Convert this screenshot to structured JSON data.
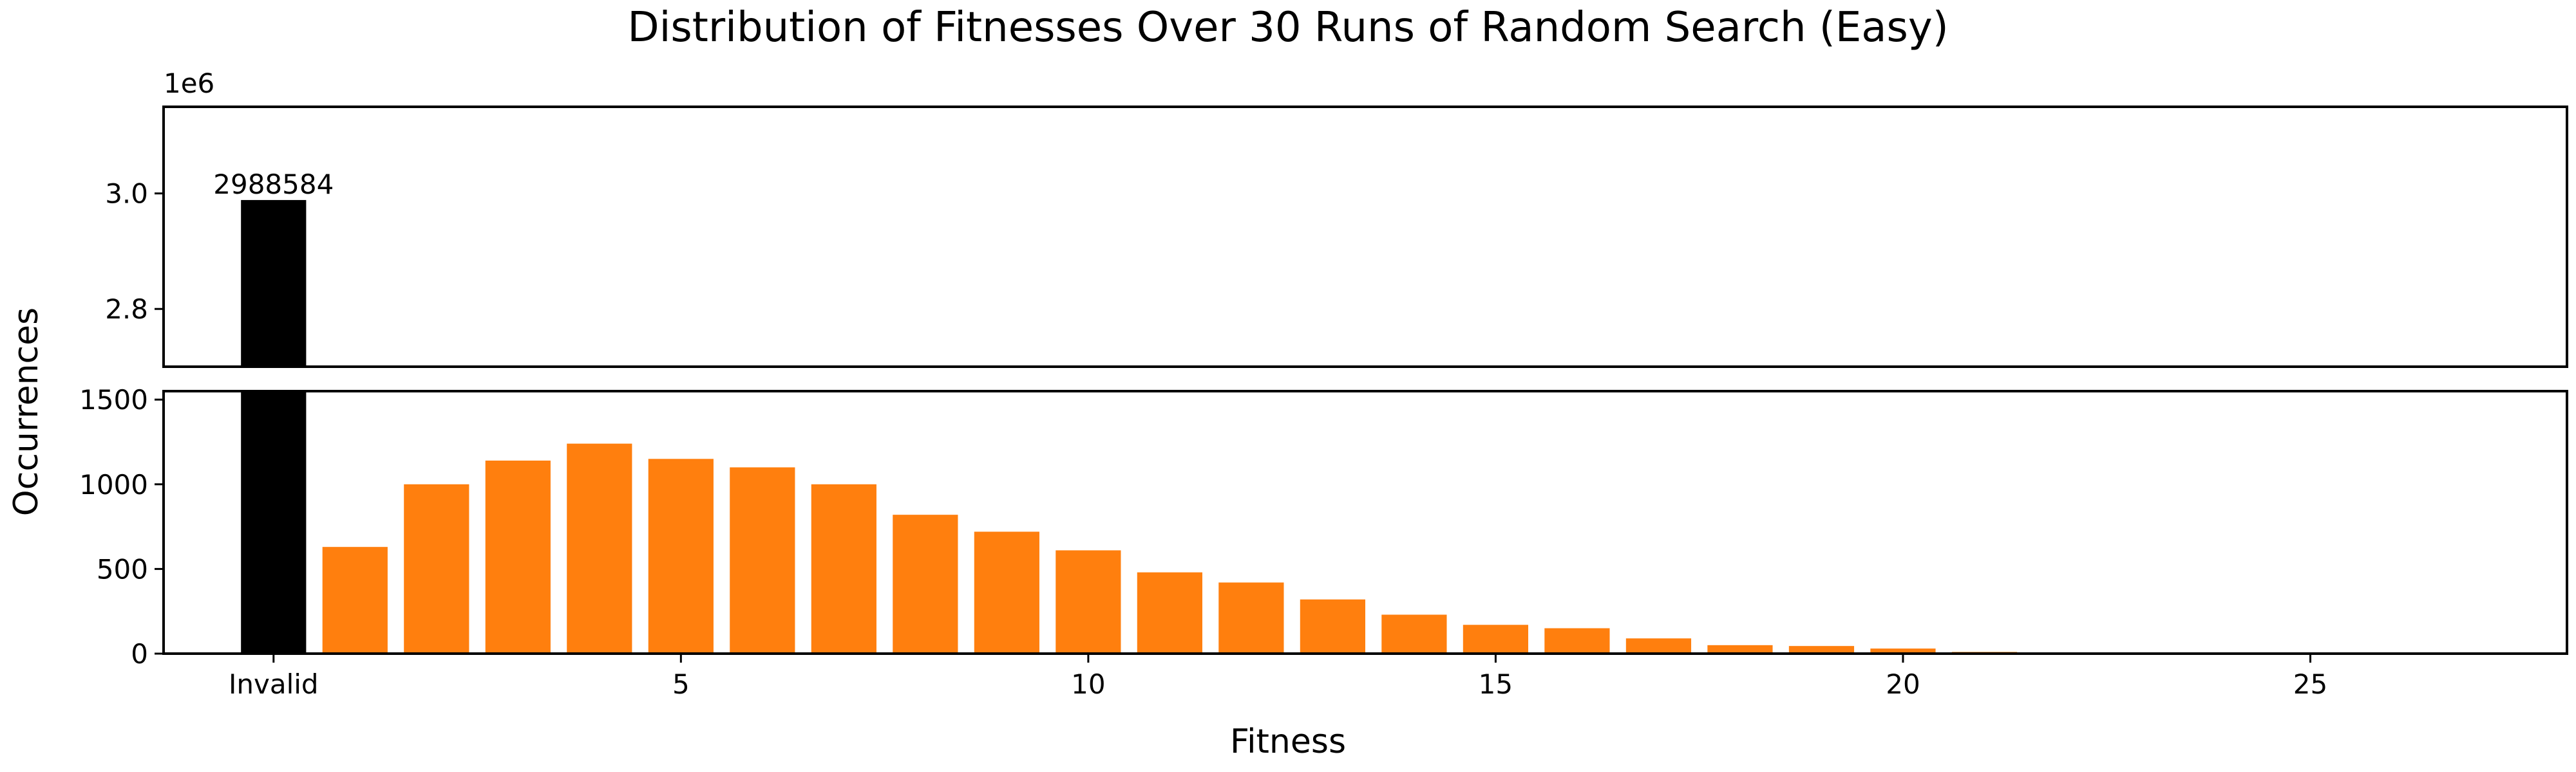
{
  "chart_data": {
    "type": "bar",
    "title": "Distribution of Fitnesses Over 30 Runs of Random Search (Easy)",
    "xlabel": "Fitness",
    "ylabel": "Occurrences",
    "x_tick_labels": [
      "Invalid",
      "5",
      "10",
      "15",
      "20",
      "25"
    ],
    "x_tick_values": [
      0,
      5,
      10,
      15,
      20,
      25
    ],
    "invalid": {
      "label": "Invalid",
      "x": 0,
      "value": 2988584,
      "value_label": "2988584",
      "color": "#000000"
    },
    "valid_color": "#ff7f0e",
    "x": [
      1,
      2,
      3,
      4,
      5,
      6,
      7,
      8,
      9,
      10,
      11,
      12,
      13,
      14,
      15,
      16,
      17,
      18,
      19,
      20,
      21,
      22,
      23,
      24,
      25
    ],
    "values": [
      630,
      1000,
      1140,
      1240,
      1150,
      1100,
      1000,
      820,
      720,
      610,
      480,
      420,
      320,
      230,
      170,
      150,
      90,
      50,
      45,
      30,
      10,
      5,
      2,
      1,
      1
    ],
    "xlim": [
      -1.35,
      28.15
    ],
    "broken_axis": true,
    "top_panel": {
      "ylim": [
        2700000,
        3150000
      ],
      "y_ticks": [
        2800000,
        3000000
      ],
      "y_tick_labels": [
        "2.8",
        "3.0"
      ],
      "offset_label": "1e6"
    },
    "bottom_panel": {
      "ylim": [
        0,
        1550
      ],
      "y_ticks": [
        0,
        500,
        1000,
        1500
      ],
      "y_tick_labels": [
        "0",
        "500",
        "1000",
        "1500"
      ]
    },
    "grid": false,
    "legend": "none"
  }
}
